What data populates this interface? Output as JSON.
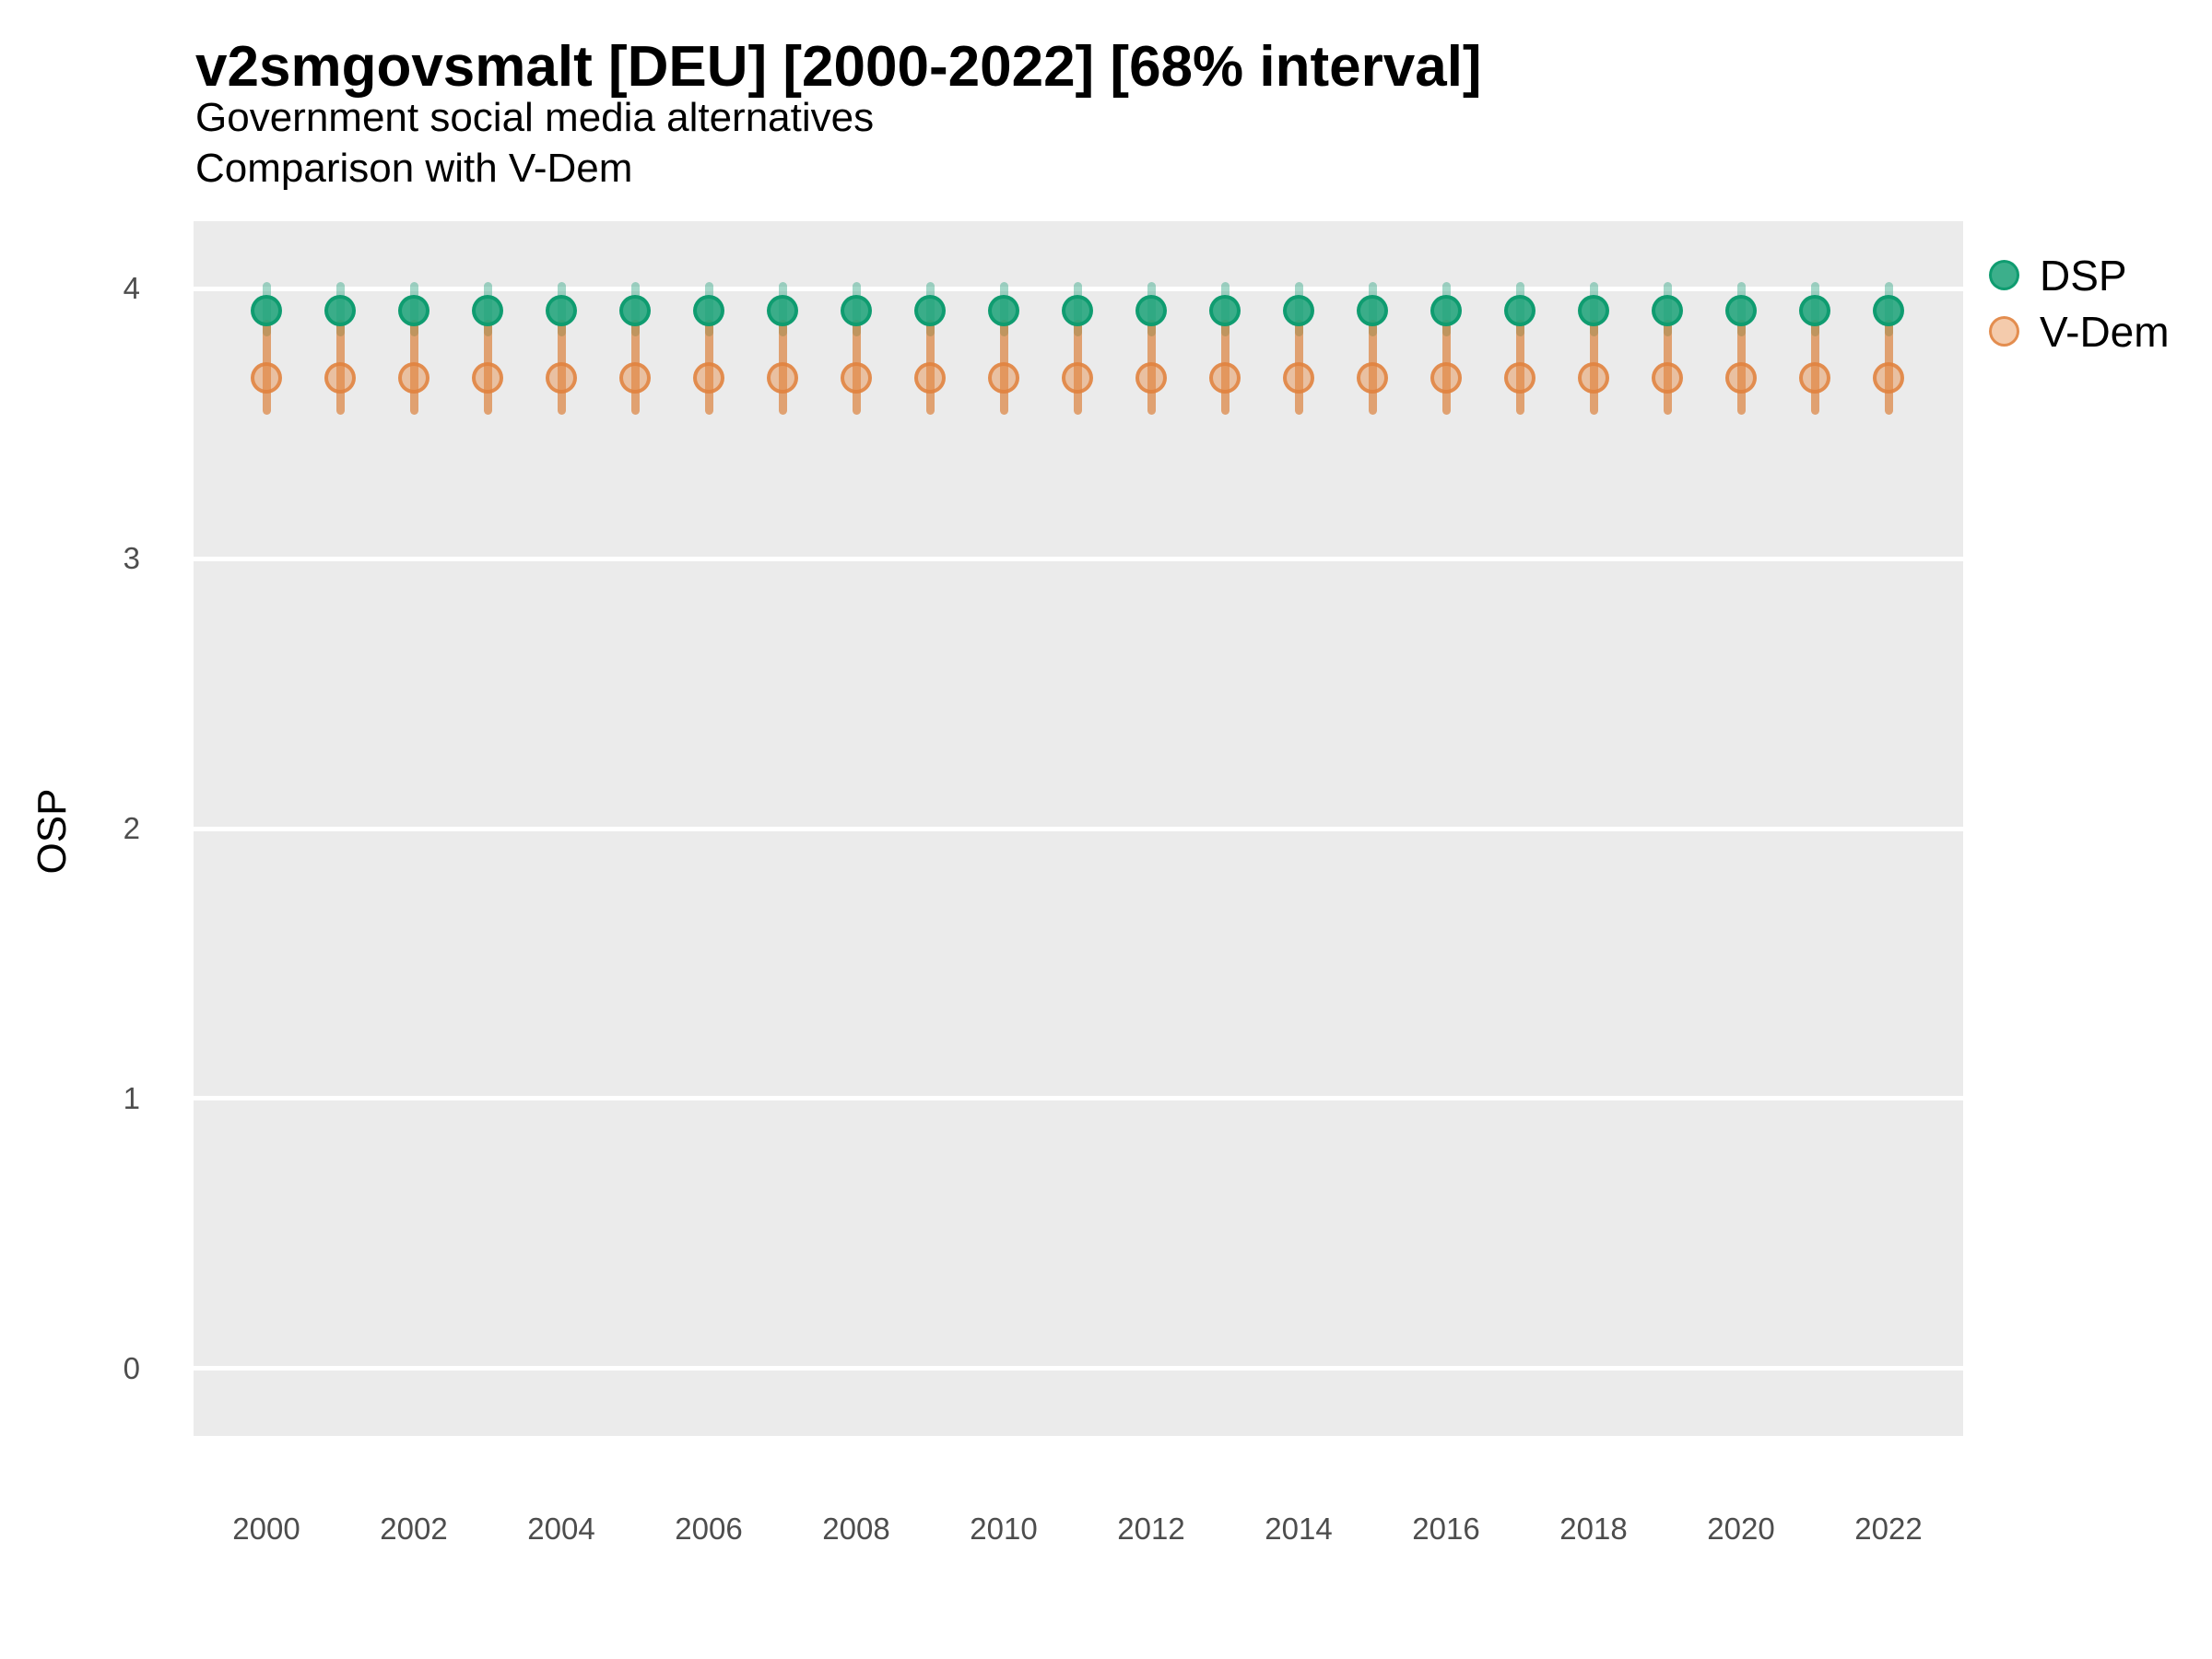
{
  "title": "v2smgovsmalt [DEU] [2000-2022] [68% interval]",
  "subtitle_line1": "Government social media alternatives",
  "subtitle_line2": "Comparison with V-Dem",
  "y_axis": {
    "label": "OSP",
    "ticks": [
      4,
      3,
      2,
      1,
      0
    ]
  },
  "x_axis": {
    "tick_labels": [
      "2000",
      "2002",
      "2004",
      "2006",
      "2008",
      "2010",
      "2012",
      "2014",
      "2016",
      "2018",
      "2020",
      "2022"
    ]
  },
  "legend": [
    {
      "label": "DSP",
      "fill": "#21A47BE0",
      "stroke": "#0E9C70F2"
    },
    {
      "label": "V-Dem",
      "fill": "#E68C4673",
      "stroke": "#E0823FD9"
    }
  ],
  "colors": {
    "background": "#FFFFFF",
    "panel_background": "#EBEBEB",
    "gridline": "#FFFFFF",
    "tick_label": "#4D4D4D",
    "dsp_point_fill": "#21A47BE0",
    "dsp_point_stroke": "#0E9C70F2",
    "dsp_interval_bar": "#1B9E7766",
    "vdem_point_fill": "#E68C4673",
    "vdem_point_stroke": "#E0823FD9",
    "vdem_interval_bar": "#D9701F99"
  },
  "chart_data": {
    "type": "scatter",
    "subtype": "pointrange",
    "title": "v2smgovsmalt [DEU] [2000-2022] [68% interval]",
    "xlabel": "",
    "ylabel": "OSP",
    "ylim": [
      -0.25,
      4.25
    ],
    "xlim": [
      1999,
      2023
    ],
    "grid": "horizontal white gridlines on gray panel, no vertical gridlines",
    "legend_position": "right-top",
    "interval_note": "68% credible interval shown as rounded vertical bars",
    "x": [
      2000,
      2001,
      2002,
      2003,
      2004,
      2005,
      2006,
      2007,
      2008,
      2009,
      2010,
      2011,
      2012,
      2013,
      2014,
      2015,
      2016,
      2017,
      2018,
      2019,
      2020,
      2021,
      2022
    ],
    "series": [
      {
        "name": "DSP",
        "values": [
          3.92,
          3.92,
          3.92,
          3.92,
          3.92,
          3.92,
          3.92,
          3.92,
          3.92,
          3.92,
          3.92,
          3.92,
          3.92,
          3.92,
          3.92,
          3.92,
          3.92,
          3.92,
          3.92,
          3.92,
          3.92,
          3.92,
          3.92
        ],
        "lows": [
          3.84,
          3.84,
          3.84,
          3.84,
          3.84,
          3.84,
          3.84,
          3.84,
          3.84,
          3.84,
          3.84,
          3.84,
          3.84,
          3.84,
          3.84,
          3.84,
          3.84,
          3.84,
          3.84,
          3.84,
          3.84,
          3.84,
          3.84
        ],
        "highs": [
          4.01,
          4.01,
          4.01,
          4.01,
          4.01,
          4.01,
          4.01,
          4.01,
          4.01,
          4.01,
          4.01,
          4.01,
          4.01,
          4.01,
          4.01,
          4.01,
          4.01,
          4.01,
          4.01,
          4.01,
          4.01,
          4.01,
          4.01
        ]
      },
      {
        "name": "V-Dem",
        "values": [
          3.67,
          3.67,
          3.67,
          3.67,
          3.67,
          3.67,
          3.67,
          3.67,
          3.67,
          3.67,
          3.67,
          3.67,
          3.67,
          3.67,
          3.67,
          3.67,
          3.67,
          3.67,
          3.67,
          3.67,
          3.67,
          3.67,
          3.67
        ],
        "lows": [
          3.55,
          3.55,
          3.55,
          3.55,
          3.55,
          3.55,
          3.55,
          3.55,
          3.55,
          3.55,
          3.55,
          3.55,
          3.55,
          3.55,
          3.55,
          3.55,
          3.55,
          3.55,
          3.55,
          3.55,
          3.55,
          3.55,
          3.55
        ],
        "highs": [
          3.87,
          3.87,
          3.87,
          3.87,
          3.87,
          3.87,
          3.87,
          3.87,
          3.87,
          3.87,
          3.87,
          3.87,
          3.87,
          3.87,
          3.87,
          3.87,
          3.87,
          3.87,
          3.87,
          3.87,
          3.87,
          3.87,
          3.87
        ]
      }
    ]
  }
}
